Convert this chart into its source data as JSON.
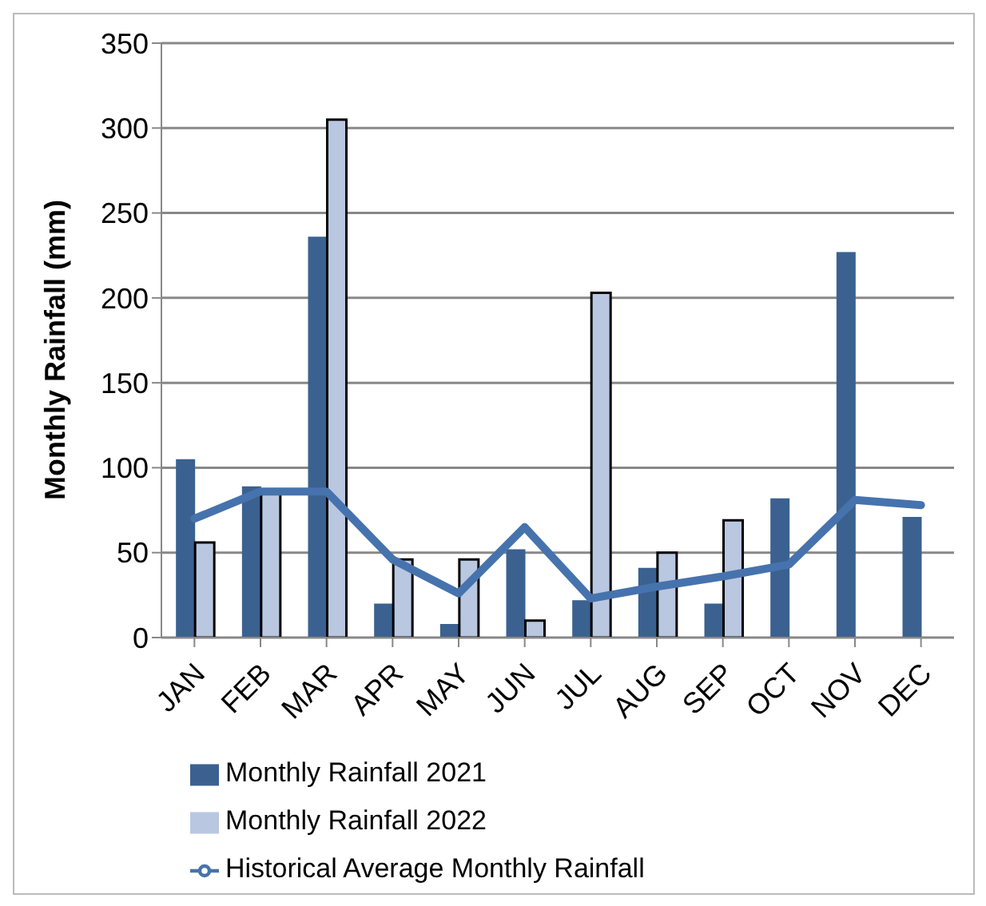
{
  "chart_data": {
    "type": "bar",
    "ylabel": "Monthly Rainfall (mm)",
    "categories": [
      "JAN",
      "FEB",
      "MAR",
      "APR",
      "MAY",
      "JUN",
      "JUL",
      "AUG",
      "SEP",
      "OCT",
      "NOV",
      "DEC"
    ],
    "series": [
      {
        "name": "Monthly Rainfall 2021",
        "color": "#3b6190",
        "values": [
          105,
          89,
          236,
          20,
          8,
          52,
          22,
          41,
          20,
          82,
          227,
          71
        ]
      },
      {
        "name": "Monthly Rainfall 2022",
        "color": "#b9c7e1",
        "values": [
          56,
          86,
          305,
          46,
          46,
          10,
          203,
          50,
          69,
          null,
          null,
          null
        ]
      },
      {
        "name": "Historical Average Monthly Rainfall",
        "type": "line",
        "color": "#4673ad",
        "values": [
          70,
          86,
          86,
          46,
          26,
          65,
          23,
          30,
          36,
          43,
          81,
          78
        ]
      }
    ],
    "ylim": [
      0,
      350
    ],
    "yticks": [
      0,
      50,
      100,
      150,
      200,
      250,
      300,
      350
    ],
    "grid": "y",
    "legend": "bottom left",
    "marker": "none",
    "line_style": "solid"
  }
}
